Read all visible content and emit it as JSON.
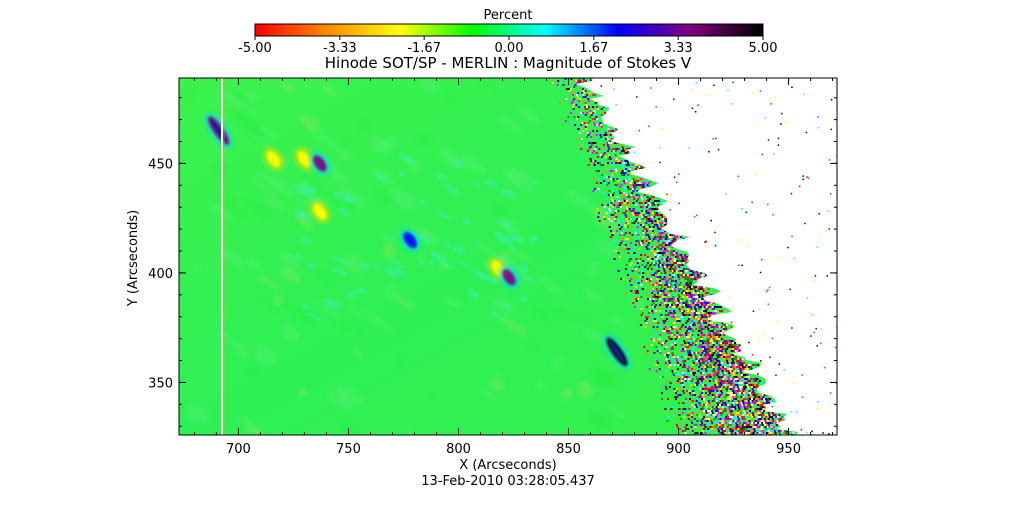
{
  "chart_data": {
    "type": "heatmap",
    "title": "Hinode SOT/SP - MERLIN : Magnitude of Stokes V",
    "colorbar": {
      "label": "Percent",
      "range": [
        -5.0,
        5.0
      ],
      "ticks": [
        "-5.00",
        "-3.33",
        "-1.67",
        "0.00",
        "1.67",
        "3.33",
        "5.00"
      ],
      "tick_values": [
        -5.0,
        -3.33,
        -1.67,
        0.0,
        1.67,
        3.33,
        5.0
      ],
      "colors": [
        "#ff0000",
        "#ff8c00",
        "#ffff00",
        "#00ff00",
        "#00ffff",
        "#0000ff",
        "#800080",
        "#000000"
      ]
    },
    "xlabel": "X (Arcseconds)",
    "ylabel": "Y (Arcseconds)",
    "xlim": [
      673,
      972
    ],
    "ylim": [
      326,
      489
    ],
    "x_ticks": [
      700,
      750,
      800,
      850,
      900,
      950
    ],
    "x_tick_labels": [
      "700",
      "750",
      "800",
      "850",
      "900",
      "950"
    ],
    "y_ticks": [
      350,
      400,
      450
    ],
    "y_tick_labels": [
      "350",
      "400",
      "450"
    ],
    "background_value": 0.0,
    "limb_noise_start_x": [
      850,
      905
    ],
    "off_disk_color": "#ffffff",
    "features": [
      {
        "name": "blue patch",
        "x": 691,
        "y": 465,
        "value": 4.0
      },
      {
        "name": "yellow patch",
        "x": 716,
        "y": 452,
        "value": -2.0
      },
      {
        "name": "yellow patch",
        "x": 730,
        "y": 452,
        "value": -1.8
      },
      {
        "name": "blue patch",
        "x": 737,
        "y": 450,
        "value": 3.0
      },
      {
        "name": "yellow patch",
        "x": 737,
        "y": 428,
        "value": -1.5
      },
      {
        "name": "blue patch",
        "x": 778,
        "y": 415,
        "value": 2.5
      },
      {
        "name": "yellow patch",
        "x": 818,
        "y": 402,
        "value": -1.8
      },
      {
        "name": "blue patch",
        "x": 823,
        "y": 398,
        "value": 3.0
      },
      {
        "name": "blue patch",
        "x": 872,
        "y": 364,
        "value": 4.3
      }
    ],
    "subtitle": "13-Feb-2010 03:28:05.437"
  }
}
